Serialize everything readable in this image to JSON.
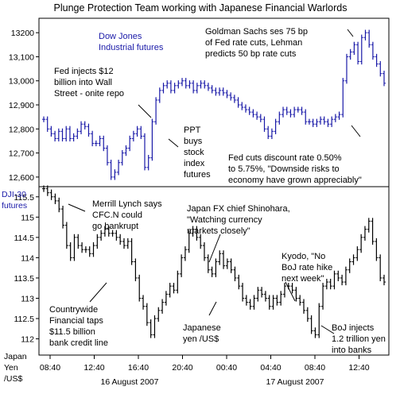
{
  "chart_data": [
    {
      "type": "ohlc",
      "title": "Plunge Protection Team working with Japanese Financial Warlords",
      "series_label": [
        "Dow Jones",
        "Industrial futures"
      ],
      "ylim": [
        12560,
        13260
      ],
      "y_ticks": [
        13200,
        13100,
        13000,
        12900,
        12800,
        12700,
        12600
      ],
      "y_tick_labels": [
        "13200",
        "13,100",
        "13,000",
        "12,900",
        "12,800",
        "12,700",
        "12,600"
      ],
      "color": "#1a1aa8",
      "series": [
        {
          "name": "",
          "values": [
            12840,
            12800,
            12780,
            12760,
            12790,
            12760,
            12800,
            12760,
            12770,
            12790,
            12820,
            12810,
            12780,
            12740,
            12740,
            12760,
            12720,
            12660,
            12600,
            12620,
            12660,
            12700,
            12720,
            12760,
            12780,
            12800,
            12770,
            12640,
            12680,
            12830,
            12920,
            12960,
            12980,
            12990,
            12960,
            12980,
            12990,
            13000,
            12980,
            12990,
            12960,
            12980,
            12990,
            12980,
            12970,
            12960,
            12950,
            12960,
            12950,
            12940,
            12930,
            12920,
            12900,
            12890,
            12880,
            12870,
            12860,
            12850,
            12840,
            12800,
            12770,
            12790,
            12830,
            12860,
            12880,
            12870,
            12860,
            12880,
            12880,
            12870,
            12830,
            12830,
            12820,
            12830,
            12840,
            12830,
            12820,
            12840,
            12850,
            12860,
            13000,
            13100,
            13120,
            13150,
            13080,
            13180,
            13200,
            13150,
            13100,
            13070,
            13030,
            12990
          ]
        }
      ],
      "annotations": [
        [
          "Goldman Sachs ses 75 bp",
          "of Fed rate cuts, Lehman",
          "predicts 50 bp rate cuts"
        ],
        [
          "Fed injects $12",
          "billion into Wall",
          "Street - onite repo"
        ],
        [
          "PPT",
          "buys",
          "stock",
          "index",
          "futures"
        ],
        [
          "Fed cuts discount rate 0.50%",
          "to 5.75%, \"Downside risks to",
          "economy have grown appreciably\""
        ]
      ]
    },
    {
      "type": "ohlc",
      "series_label": [
        "Japanese",
        "yen /US$"
      ],
      "y_axis_title": [
        "DJI-30",
        "futures"
      ],
      "ylim": [
        111.6,
        115.75
      ],
      "y_ticks": [
        115.5,
        115,
        114.5,
        114,
        113.5,
        113,
        112.5,
        112
      ],
      "y_tick_labels": [
        "115.5",
        "115",
        "114.5",
        "114",
        "113.5",
        "113",
        "112.5",
        "112"
      ],
      "color": "#000000",
      "series": [
        {
          "name": "",
          "values": [
            115.7,
            115.6,
            115.5,
            115.4,
            115.2,
            114.8,
            114.3,
            114.0,
            114.5,
            114.3,
            114.2,
            114.2,
            114.1,
            114.3,
            114.5,
            114.6,
            114.7,
            114.6,
            114.6,
            114.5,
            114.4,
            114.3,
            114.4,
            113.9,
            113.5,
            113.0,
            112.8,
            112.4,
            112.1,
            112.5,
            112.7,
            112.9,
            113.1,
            113.3,
            113.2,
            113.6,
            114.0,
            114.2,
            114.6,
            114.7,
            114.5,
            114.3,
            114.0,
            113.7,
            113.6,
            113.9,
            114.1,
            113.8,
            113.9,
            113.7,
            113.5,
            113.3,
            113.0,
            112.9,
            112.8,
            113.0,
            113.2,
            113.1,
            113.0,
            112.8,
            113.0,
            112.9,
            113.1,
            113.3,
            113.3,
            113.2,
            113.0,
            112.9,
            112.7,
            112.5,
            112.2,
            112.1,
            112.8,
            113.3,
            113.4,
            113.3,
            113.6,
            113.5,
            113.4,
            113.7,
            113.9,
            114.0,
            114.2,
            114.5,
            114.7,
            114.9,
            114.4,
            114.0,
            113.5,
            113.4
          ]
        }
      ],
      "annotations": [
        [
          "Merrill Lynch says",
          "CFC.N could",
          "go bankrupt"
        ],
        [
          "Japan FX chief Shinohara,",
          "\"Watching currency",
          "markets closely\""
        ],
        [
          "Kyodo, \"No",
          "BoJ rate hike",
          "next week\""
        ],
        [
          "Countrywide",
          "Financial taps",
          "$11.5 billion",
          "bank credit line"
        ],
        [
          "BoJ injects",
          "1.2 trillion yen",
          "into banks"
        ]
      ]
    }
  ],
  "x_axis": {
    "tick_labels": [
      "08:40",
      "12:40",
      "16:40",
      "20:40",
      "00:40",
      "04:40",
      "08:40",
      "12:40"
    ],
    "date_labels": [
      "16 August 2007",
      "17 August 2007"
    ]
  },
  "corner_label": [
    "Japan",
    "Yen",
    "/US$"
  ]
}
